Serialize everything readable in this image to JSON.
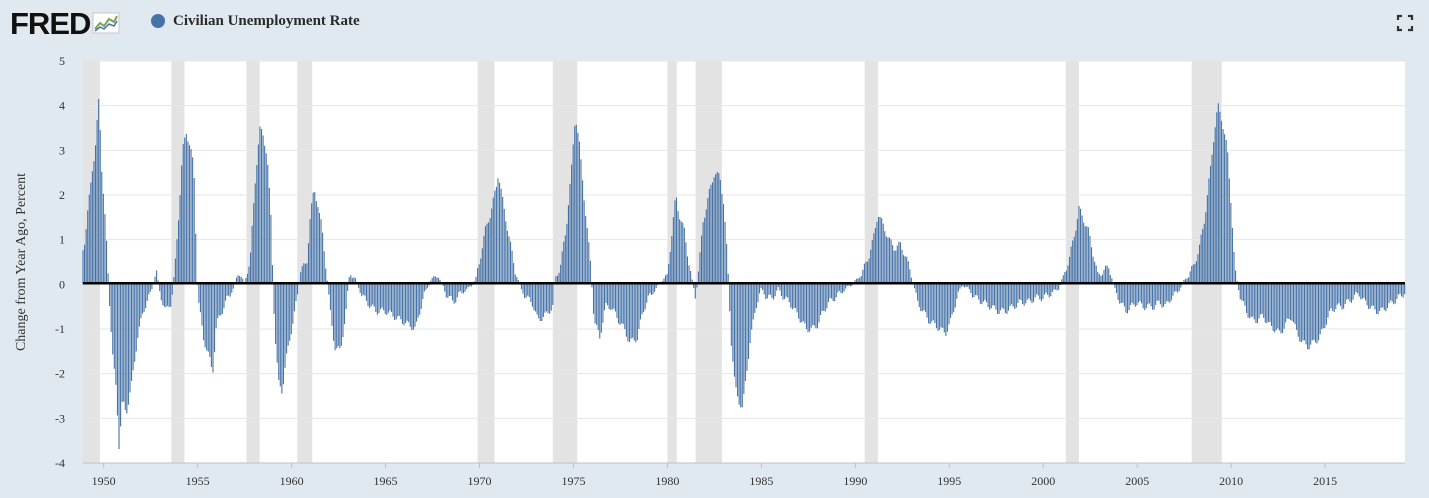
{
  "header": {
    "logo_text": "FRED",
    "legend_label": "Civilian Unemployment Rate",
    "series_color": "#4572a7"
  },
  "chart_data": {
    "type": "bar",
    "title": "",
    "xlabel": "",
    "ylabel": "Change from Year Ago, Percent",
    "ylim": [
      -4,
      5
    ],
    "xlim": [
      1948.9,
      2019.25
    ],
    "y_ticks": [
      "5",
      "4",
      "3",
      "2",
      "1",
      "0",
      "-1",
      "-2",
      "-3",
      "-4"
    ],
    "x_ticks": [
      "1950",
      "1955",
      "1960",
      "1965",
      "1970",
      "1975",
      "1980",
      "1985",
      "1990",
      "1995",
      "2000",
      "2005",
      "2010",
      "2015"
    ],
    "grid": true,
    "legend_position": "top-left",
    "bar_color": "#4572a7",
    "recession_color": "#e3e3e3",
    "recessions": [
      [
        1948.9,
        1949.8
      ],
      [
        1953.6,
        1954.3
      ],
      [
        1957.6,
        1958.3
      ],
      [
        1960.3,
        1961.1
      ],
      [
        1969.9,
        1970.8
      ],
      [
        1973.9,
        1975.2
      ],
      [
        1980.0,
        1980.5
      ],
      [
        1981.5,
        1982.9
      ],
      [
        1990.5,
        1991.2
      ],
      [
        2001.2,
        2001.9
      ],
      [
        2007.9,
        2009.5
      ]
    ],
    "series": [
      {
        "name": "Civilian Unemployment Rate",
        "anchors": [
          [
            1948.9,
            0.8
          ],
          [
            1949.0,
            1.0
          ],
          [
            1949.4,
            2.6
          ],
          [
            1949.55,
            3.0
          ],
          [
            1949.75,
            4.2
          ],
          [
            1949.9,
            2.6
          ],
          [
            1950.1,
            1.3
          ],
          [
            1950.3,
            -0.3
          ],
          [
            1950.5,
            -1.7
          ],
          [
            1950.7,
            -2.5
          ],
          [
            1950.8,
            -3.7
          ],
          [
            1951.0,
            -2.6
          ],
          [
            1951.2,
            -2.9
          ],
          [
            1951.5,
            -2.2
          ],
          [
            1951.8,
            -1.2
          ],
          [
            1952.1,
            -0.6
          ],
          [
            1952.5,
            -0.2
          ],
          [
            1952.8,
            0.3
          ],
          [
            1953.0,
            -0.2
          ],
          [
            1953.3,
            -0.6
          ],
          [
            1953.6,
            -0.4
          ],
          [
            1953.8,
            0.4
          ],
          [
            1954.0,
            1.6
          ],
          [
            1954.2,
            3.0
          ],
          [
            1954.4,
            3.4
          ],
          [
            1954.6,
            3.1
          ],
          [
            1954.8,
            2.6
          ],
          [
            1955.0,
            -0.2
          ],
          [
            1955.3,
            -1.2
          ],
          [
            1955.6,
            -1.6
          ],
          [
            1955.8,
            -2.0
          ],
          [
            1956.0,
            -0.9
          ],
          [
            1956.3,
            -0.6
          ],
          [
            1956.6,
            -0.3
          ],
          [
            1956.9,
            -0.1
          ],
          [
            1957.2,
            0.3
          ],
          [
            1957.5,
            0.0
          ],
          [
            1957.8,
            0.6
          ],
          [
            1958.1,
            2.5
          ],
          [
            1958.3,
            3.5
          ],
          [
            1958.5,
            3.3
          ],
          [
            1958.7,
            2.9
          ],
          [
            1958.9,
            1.5
          ],
          [
            1959.1,
            -1.0
          ],
          [
            1959.3,
            -2.2
          ],
          [
            1959.5,
            -2.4
          ],
          [
            1959.7,
            -1.7
          ],
          [
            1960.0,
            -1.0
          ],
          [
            1960.3,
            -0.3
          ],
          [
            1960.5,
            0.4
          ],
          [
            1960.8,
            0.4
          ],
          [
            1961.0,
            1.6
          ],
          [
            1961.2,
            2.1
          ],
          [
            1961.4,
            1.8
          ],
          [
            1961.6,
            1.3
          ],
          [
            1961.9,
            0.1
          ],
          [
            1962.1,
            -0.8
          ],
          [
            1962.3,
            -1.4
          ],
          [
            1962.6,
            -1.5
          ],
          [
            1962.9,
            -0.6
          ],
          [
            1963.1,
            0.3
          ],
          [
            1963.4,
            0.1
          ],
          [
            1963.7,
            -0.2
          ],
          [
            1964.0,
            -0.4
          ],
          [
            1964.5,
            -0.6
          ],
          [
            1965.0,
            -0.6
          ],
          [
            1965.4,
            -0.7
          ],
          [
            1965.8,
            -0.8
          ],
          [
            1966.2,
            -0.9
          ],
          [
            1966.6,
            -1.0
          ],
          [
            1967.0,
            -0.3
          ],
          [
            1967.4,
            0.1
          ],
          [
            1967.8,
            0.2
          ],
          [
            1968.2,
            -0.2
          ],
          [
            1968.6,
            -0.4
          ],
          [
            1969.0,
            -0.2
          ],
          [
            1969.4,
            -0.1
          ],
          [
            1969.8,
            0.1
          ],
          [
            1970.0,
            0.5
          ],
          [
            1970.3,
            1.2
          ],
          [
            1970.6,
            1.6
          ],
          [
            1970.9,
            2.2
          ],
          [
            1971.0,
            2.5
          ],
          [
            1971.3,
            1.7
          ],
          [
            1971.6,
            1.0
          ],
          [
            1971.9,
            0.3
          ],
          [
            1972.2,
            -0.1
          ],
          [
            1972.5,
            -0.3
          ],
          [
            1972.8,
            -0.4
          ],
          [
            1973.1,
            -0.8
          ],
          [
            1973.5,
            -0.7
          ],
          [
            1973.9,
            -0.5
          ],
          [
            1974.0,
            0.1
          ],
          [
            1974.3,
            0.4
          ],
          [
            1974.6,
            1.2
          ],
          [
            1974.9,
            2.6
          ],
          [
            1975.1,
            3.8
          ],
          [
            1975.3,
            3.2
          ],
          [
            1975.6,
            1.8
          ],
          [
            1975.9,
            0.5
          ],
          [
            1976.1,
            -0.8
          ],
          [
            1976.4,
            -1.2
          ],
          [
            1976.7,
            -0.5
          ],
          [
            1977.0,
            -0.5
          ],
          [
            1977.4,
            -0.8
          ],
          [
            1977.7,
            -1.0
          ],
          [
            1978.0,
            -1.3
          ],
          [
            1978.4,
            -1.2
          ],
          [
            1978.7,
            -0.6
          ],
          [
            1979.0,
            -0.3
          ],
          [
            1979.4,
            -0.1
          ],
          [
            1979.7,
            0.1
          ],
          [
            1980.0,
            0.2
          ],
          [
            1980.2,
            1.0
          ],
          [
            1980.45,
            2.0
          ],
          [
            1980.6,
            1.6
          ],
          [
            1980.9,
            1.2
          ],
          [
            1981.1,
            0.6
          ],
          [
            1981.3,
            0.1
          ],
          [
            1981.5,
            -0.3
          ],
          [
            1981.7,
            0.5
          ],
          [
            1981.9,
            1.4
          ],
          [
            1982.2,
            2.0
          ],
          [
            1982.5,
            2.5
          ],
          [
            1982.8,
            2.4
          ],
          [
            1983.0,
            1.8
          ],
          [
            1983.2,
            0.5
          ],
          [
            1983.4,
            -1.3
          ],
          [
            1983.6,
            -2.3
          ],
          [
            1983.8,
            -2.6
          ],
          [
            1984.0,
            -2.8
          ],
          [
            1984.2,
            -2.0
          ],
          [
            1984.4,
            -1.3
          ],
          [
            1984.7,
            -0.5
          ],
          [
            1985.0,
            -0.1
          ],
          [
            1985.3,
            -0.3
          ],
          [
            1985.6,
            -0.3
          ],
          [
            1985.9,
            -0.1
          ],
          [
            1986.2,
            -0.3
          ],
          [
            1986.5,
            -0.4
          ],
          [
            1986.8,
            -0.6
          ],
          [
            1987.1,
            -0.8
          ],
          [
            1987.4,
            -1.0
          ],
          [
            1987.7,
            -1.0
          ],
          [
            1988.0,
            -0.9
          ],
          [
            1988.3,
            -0.6
          ],
          [
            1988.6,
            -0.4
          ],
          [
            1988.9,
            -0.3
          ],
          [
            1989.2,
            -0.2
          ],
          [
            1989.5,
            -0.1
          ],
          [
            1989.8,
            0.0
          ],
          [
            1990.1,
            0.1
          ],
          [
            1990.4,
            0.3
          ],
          [
            1990.7,
            0.6
          ],
          [
            1991.0,
            1.1
          ],
          [
            1991.2,
            1.6
          ],
          [
            1991.5,
            1.3
          ],
          [
            1991.8,
            1.0
          ],
          [
            1992.1,
            0.8
          ],
          [
            1992.4,
            0.9
          ],
          [
            1992.7,
            0.6
          ],
          [
            1993.0,
            0.2
          ],
          [
            1993.3,
            -0.4
          ],
          [
            1993.6,
            -0.6
          ],
          [
            1993.9,
            -0.8
          ],
          [
            1994.2,
            -0.9
          ],
          [
            1994.5,
            -1.0
          ],
          [
            1994.8,
            -1.1
          ],
          [
            1995.1,
            -0.8
          ],
          [
            1995.4,
            -0.3
          ],
          [
            1995.7,
            0.0
          ],
          [
            1996.0,
            -0.1
          ],
          [
            1996.4,
            -0.3
          ],
          [
            1996.8,
            -0.4
          ],
          [
            1997.2,
            -0.5
          ],
          [
            1997.6,
            -0.6
          ],
          [
            1998.0,
            -0.6
          ],
          [
            1998.4,
            -0.5
          ],
          [
            1998.8,
            -0.4
          ],
          [
            1999.2,
            -0.4
          ],
          [
            1999.6,
            -0.3
          ],
          [
            2000.0,
            -0.3
          ],
          [
            2000.4,
            -0.2
          ],
          [
            2000.8,
            -0.1
          ],
          [
            2001.1,
            0.2
          ],
          [
            2001.4,
            0.6
          ],
          [
            2001.7,
            1.2
          ],
          [
            2001.9,
            1.7
          ],
          [
            2002.1,
            1.5
          ],
          [
            2002.4,
            1.2
          ],
          [
            2002.7,
            0.6
          ],
          [
            2002.9,
            0.2
          ],
          [
            2003.2,
            0.3
          ],
          [
            2003.5,
            0.4
          ],
          [
            2003.8,
            -0.1
          ],
          [
            2004.1,
            -0.4
          ],
          [
            2004.4,
            -0.6
          ],
          [
            2004.7,
            -0.5
          ],
          [
            2005.0,
            -0.4
          ],
          [
            2005.3,
            -0.5
          ],
          [
            2005.6,
            -0.5
          ],
          [
            2005.9,
            -0.5
          ],
          [
            2006.2,
            -0.4
          ],
          [
            2006.5,
            -0.5
          ],
          [
            2006.8,
            -0.3
          ],
          [
            2007.1,
            -0.2
          ],
          [
            2007.4,
            0.0
          ],
          [
            2007.7,
            0.2
          ],
          [
            2008.0,
            0.4
          ],
          [
            2008.3,
            0.8
          ],
          [
            2008.6,
            1.5
          ],
          [
            2008.9,
            2.6
          ],
          [
            2009.1,
            3.4
          ],
          [
            2009.3,
            4.0
          ],
          [
            2009.5,
            3.7
          ],
          [
            2009.8,
            3.0
          ],
          [
            2010.0,
            1.8
          ],
          [
            2010.2,
            0.3
          ],
          [
            2010.5,
            -0.3
          ],
          [
            2010.8,
            -0.6
          ],
          [
            2011.1,
            -0.8
          ],
          [
            2011.4,
            -0.8
          ],
          [
            2011.7,
            -0.7
          ],
          [
            2012.0,
            -0.9
          ],
          [
            2012.3,
            -1.0
          ],
          [
            2012.6,
            -1.1
          ],
          [
            2012.9,
            -0.9
          ],
          [
            2013.2,
            -0.7
          ],
          [
            2013.5,
            -1.1
          ],
          [
            2013.8,
            -1.3
          ],
          [
            2014.1,
            -1.4
          ],
          [
            2014.4,
            -1.3
          ],
          [
            2014.7,
            -1.2
          ],
          [
            2015.0,
            -0.9
          ],
          [
            2015.3,
            -0.6
          ],
          [
            2015.6,
            -0.5
          ],
          [
            2015.9,
            -0.5
          ],
          [
            2016.2,
            -0.4
          ],
          [
            2016.5,
            -0.3
          ],
          [
            2016.8,
            -0.2
          ],
          [
            2017.1,
            -0.4
          ],
          [
            2017.4,
            -0.5
          ],
          [
            2017.7,
            -0.6
          ],
          [
            2018.0,
            -0.6
          ],
          [
            2018.3,
            -0.5
          ],
          [
            2018.6,
            -0.4
          ],
          [
            2018.9,
            -0.3
          ],
          [
            2019.2,
            -0.2
          ]
        ]
      }
    ]
  }
}
